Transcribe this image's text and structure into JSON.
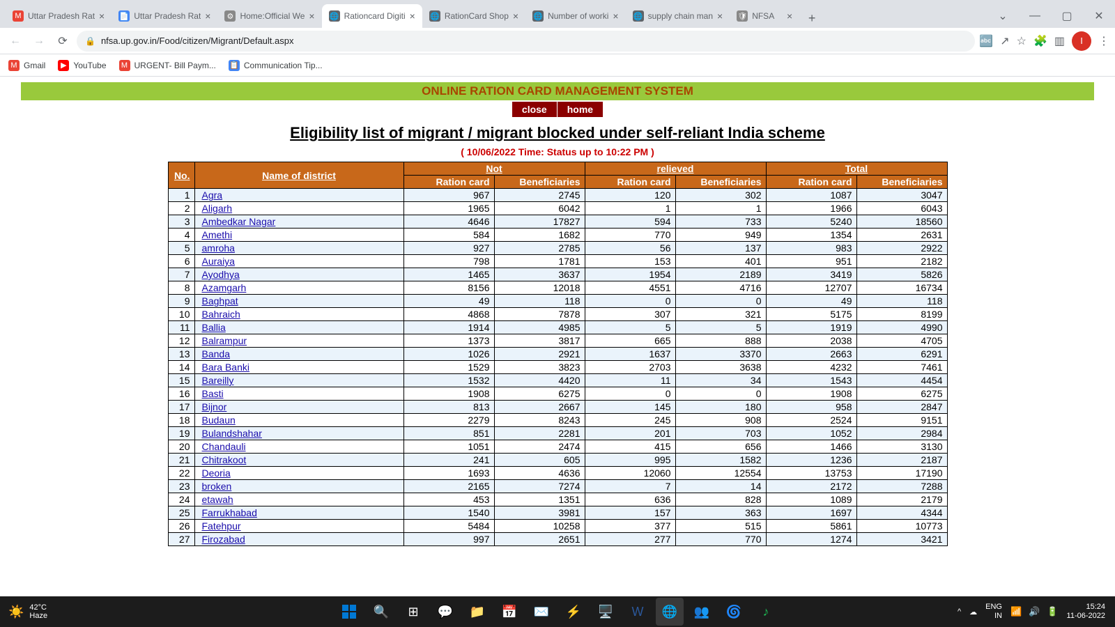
{
  "browser": {
    "tabs": [
      {
        "title": "Uttar Pradesh Rat",
        "favicon": "M",
        "favicon_bg": "#ea4335",
        "active": false
      },
      {
        "title": "Uttar Pradesh Rat",
        "favicon": "📄",
        "favicon_bg": "#4285f4",
        "active": false
      },
      {
        "title": "Home:Official We",
        "favicon": "⚙",
        "favicon_bg": "#888",
        "active": false
      },
      {
        "title": "Rationcard Digiti",
        "favicon": "🌐",
        "favicon_bg": "#5f6368",
        "active": true
      },
      {
        "title": "RationCard Shop",
        "favicon": "🌐",
        "favicon_bg": "#5f6368",
        "active": false
      },
      {
        "title": "Number of worki",
        "favicon": "🌐",
        "favicon_bg": "#5f6368",
        "active": false
      },
      {
        "title": "supply chain man",
        "favicon": "🌐",
        "favicon_bg": "#5f6368",
        "active": false
      },
      {
        "title": "NFSA",
        "favicon": "🛡",
        "favicon_bg": "#888",
        "active": false
      }
    ],
    "url": "nfsa.up.gov.in/Food/citizen/Migrant/Default.aspx",
    "bookmarks": [
      {
        "icon": "M",
        "bg": "#ea4335",
        "label": "Gmail"
      },
      {
        "icon": "▶",
        "bg": "#ff0000",
        "label": "YouTube"
      },
      {
        "icon": "M",
        "bg": "#ea4335",
        "label": "URGENT- Bill Paym..."
      },
      {
        "icon": "📋",
        "bg": "#4285f4",
        "label": "Communication Tip..."
      }
    ]
  },
  "page": {
    "banner": "ONLINE RATION CARD MANAGEMENT SYSTEM",
    "close_label": "close",
    "home_label": "home",
    "title": "Eligibility list of migrant / migrant blocked under self-reliant India scheme",
    "timestamp": "( 10/06/2022 Time: Status up to 10:22 PM )",
    "headers": {
      "no": "No.",
      "name": "Name of district",
      "not": "Not",
      "relieved": "relieved",
      "total": "Total",
      "ration": "Ration card",
      "benef": "Beneficiaries"
    },
    "header_bg": "#c8681a",
    "row_alt_bg": "#eaf3fb",
    "link_color": "#1a0dab",
    "columns": [
      "no",
      "district",
      "not_ration",
      "not_benef",
      "rel_ration",
      "rel_benef",
      "tot_ration",
      "tot_benef"
    ],
    "rows": [
      [
        1,
        "Agra",
        967,
        2745,
        120,
        302,
        1087,
        3047
      ],
      [
        2,
        "Aligarh",
        1965,
        6042,
        1,
        1,
        1966,
        6043
      ],
      [
        3,
        "Ambedkar Nagar",
        4646,
        17827,
        594,
        733,
        5240,
        18560
      ],
      [
        4,
        "Amethi",
        584,
        1682,
        770,
        949,
        1354,
        2631
      ],
      [
        5,
        "amroha",
        927,
        2785,
        56,
        137,
        983,
        2922
      ],
      [
        6,
        "Auraiya",
        798,
        1781,
        153,
        401,
        951,
        2182
      ],
      [
        7,
        "Ayodhya",
        1465,
        3637,
        1954,
        2189,
        3419,
        5826
      ],
      [
        8,
        "Azamgarh",
        8156,
        12018,
        4551,
        4716,
        12707,
        16734
      ],
      [
        9,
        "Baghpat",
        49,
        118,
        0,
        0,
        49,
        118
      ],
      [
        10,
        "Bahraich",
        4868,
        7878,
        307,
        321,
        5175,
        8199
      ],
      [
        11,
        "Ballia",
        1914,
        4985,
        5,
        5,
        1919,
        4990
      ],
      [
        12,
        "Balrampur",
        1373,
        3817,
        665,
        888,
        2038,
        4705
      ],
      [
        13,
        "Banda",
        1026,
        2921,
        1637,
        3370,
        2663,
        6291
      ],
      [
        14,
        "Bara Banki",
        1529,
        3823,
        2703,
        3638,
        4232,
        7461
      ],
      [
        15,
        "Bareilly",
        1532,
        4420,
        11,
        34,
        1543,
        4454
      ],
      [
        16,
        "Basti",
        1908,
        6275,
        0,
        0,
        1908,
        6275
      ],
      [
        17,
        "Bijnor",
        813,
        2667,
        145,
        180,
        958,
        2847
      ],
      [
        18,
        "Budaun",
        2279,
        8243,
        245,
        908,
        2524,
        9151
      ],
      [
        19,
        "Bulandshahar",
        851,
        2281,
        201,
        703,
        1052,
        2984
      ],
      [
        20,
        "Chandauli",
        1051,
        2474,
        415,
        656,
        1466,
        3130
      ],
      [
        21,
        "Chitrakoot",
        241,
        605,
        995,
        1582,
        1236,
        2187
      ],
      [
        22,
        "Deoria",
        1693,
        4636,
        12060,
        12554,
        13753,
        17190
      ],
      [
        23,
        "broken",
        2165,
        7274,
        7,
        14,
        2172,
        7288
      ],
      [
        24,
        "etawah",
        453,
        1351,
        636,
        828,
        1089,
        2179
      ],
      [
        25,
        "Farrukhabad",
        1540,
        3981,
        157,
        363,
        1697,
        4344
      ],
      [
        26,
        "Fatehpur",
        5484,
        10258,
        377,
        515,
        5861,
        10773
      ],
      [
        27,
        "Firozabad",
        997,
        2651,
        277,
        770,
        1274,
        3421
      ]
    ]
  },
  "taskbar": {
    "temp": "42°C",
    "condition": "Haze",
    "lang": "ENG",
    "locale": "IN",
    "time": "15:24",
    "date": "11-06-2022"
  }
}
